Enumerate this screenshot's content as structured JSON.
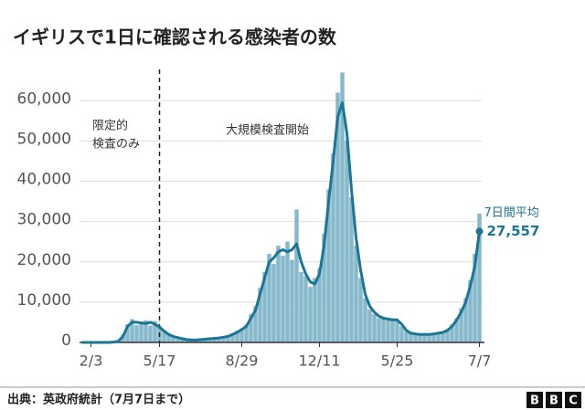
{
  "chart_data": {
    "type": "bar_line",
    "title": "イギリスで1日に確認される感染者の数",
    "categories": [
      null,
      null,
      "2/3",
      null,
      null,
      null,
      null,
      null,
      null,
      null,
      null,
      null,
      null,
      null,
      null,
      null,
      null,
      "5/17",
      null,
      null,
      null,
      null,
      null,
      null,
      null,
      null,
      null,
      null,
      null,
      null,
      null,
      null,
      null,
      null,
      null,
      "8/29",
      null,
      null,
      null,
      null,
      null,
      null,
      null,
      null,
      null,
      null,
      null,
      null,
      null,
      null,
      null,
      null,
      "12/11",
      null,
      null,
      null,
      null,
      null,
      null,
      null,
      null,
      null,
      null,
      null,
      null,
      null,
      null,
      null,
      null,
      "5/25",
      null,
      null,
      null,
      null,
      null,
      null,
      null,
      null,
      null,
      null,
      null,
      null,
      null,
      null,
      null,
      null,
      null,
      "7/7"
    ],
    "series": [
      {
        "color": "#86b9cc",
        "values": [
          0,
          0,
          0,
          0,
          0,
          0,
          0,
          150,
          400,
          2000,
          4500,
          5800,
          4300,
          5200,
          5500,
          4200,
          5300,
          4100,
          2600,
          2300,
          1700,
          1300,
          1000,
          800,
          700,
          500,
          800,
          900,
          1100,
          900,
          1300,
          1400,
          1700,
          2300,
          2900,
          3500,
          4500,
          7000,
          9000,
          13500,
          17500,
          22000,
          19500,
          24000,
          21500,
          25000,
          20500,
          33000,
          17500,
          16500,
          13800,
          16000,
          18500,
          27000,
          38000,
          47000,
          62000,
          67000,
          50000,
          36000,
          24000,
          16000,
          11000,
          8200,
          7000,
          6000,
          6200,
          5500,
          6000,
          5400,
          4000,
          2700,
          2200,
          2000,
          2100,
          1800,
          2200,
          2000,
          2600,
          2400,
          3200,
          4500,
          6000,
          8500,
          11000,
          15500,
          22000,
          32000
        ]
      },
      {
        "name": "7日間平均",
        "color": "#1b7594",
        "values": [
          0,
          0,
          0,
          0,
          0,
          0,
          0,
          100,
          300,
          1500,
          4000,
          5000,
          5000,
          4800,
          4700,
          5000,
          4500,
          3800,
          2800,
          2000,
          1500,
          1200,
          900,
          700,
          600,
          600,
          700,
          800,
          900,
          1000,
          1100,
          1300,
          1500,
          2000,
          2500,
          3200,
          4000,
          6000,
          8000,
          12000,
          16000,
          20000,
          21000,
          22500,
          23000,
          22500,
          23000,
          24500,
          20000,
          17000,
          15000,
          14500,
          17000,
          24000,
          35000,
          45000,
          56000,
          59500,
          52000,
          38000,
          26000,
          18000,
          12000,
          9000,
          7500,
          6500,
          6000,
          5800,
          5600,
          5600,
          4500,
          3000,
          2300,
          2100,
          2000,
          2000,
          2000,
          2100,
          2300,
          2500,
          3000,
          4000,
          5500,
          7500,
          10000,
          14000,
          19000,
          27557
        ],
        "value_labels": [
          null,
          null,
          null,
          null,
          null,
          null,
          null,
          null,
          null,
          null,
          null,
          null,
          null,
          null,
          null,
          null,
          null,
          null,
          null,
          null,
          null,
          null,
          null,
          null,
          null,
          null,
          null,
          null,
          null,
          null,
          null,
          null,
          null,
          null,
          null,
          null,
          null,
          null,
          null,
          null,
          null,
          null,
          null,
          null,
          null,
          null,
          null,
          null,
          null,
          null,
          null,
          null,
          null,
          null,
          null,
          null,
          null,
          null,
          null,
          null,
          null,
          null,
          null,
          null,
          null,
          null,
          null,
          null,
          null,
          null,
          null,
          null,
          null,
          null,
          null,
          null,
          null,
          null,
          null,
          null,
          null,
          null,
          null,
          null,
          null,
          null,
          null,
          "27,557"
        ]
      }
    ],
    "ylim": [
      0,
      68000
    ],
    "yticks": [
      0,
      {
        "value": 10000,
        "label": "10,000"
      },
      {
        "value": 20000,
        "label": "20,000"
      },
      {
        "value": 30000,
        "label": "30,000"
      },
      {
        "value": 40000,
        "label": "40,000"
      },
      {
        "value": 50000,
        "label": "50,000"
      },
      {
        "value": 60000,
        "label": "60,000"
      }
    ],
    "grid": true,
    "annotations": [
      {
        "lines": [
          "限定的",
          "検査のみ"
        ]
      },
      {
        "lines": [
          "大規模検査開始"
        ]
      }
    ]
  },
  "footer": {
    "source": "出典：英政府統計（7月7日まで）",
    "logo": [
      "B",
      "B",
      "C"
    ]
  }
}
